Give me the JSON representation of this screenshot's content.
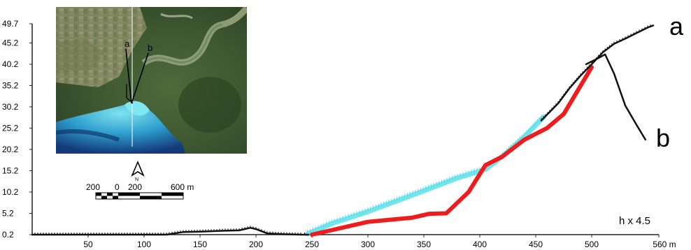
{
  "chart_data": {
    "type": "line",
    "x_unit": "m",
    "xlim": [
      0,
      560
    ],
    "ylim": [
      0.2,
      49.7
    ],
    "x_ticks": [
      50,
      100,
      150,
      200,
      250,
      300,
      350,
      400,
      450,
      500,
      560
    ],
    "x_tick_labels": [
      "50",
      "100",
      "150",
      "200",
      "250",
      "300",
      "350",
      "400",
      "450",
      "500",
      "560 m"
    ],
    "y_ticks": [
      0.2,
      5.2,
      10.2,
      15.2,
      20.2,
      25.2,
      30.2,
      35.2,
      40.2,
      45.2,
      49.7
    ],
    "y_tick_labels": [
      "0.2",
      "5.2",
      "10.2",
      "15.2",
      "20.2",
      "25.2",
      "30.2",
      "35.2",
      "40.2",
      "45.2",
      "49.7"
    ],
    "annotation": "h x 4.5",
    "series": [
      {
        "name": "a",
        "color": "#111111",
        "style": "ticked-line",
        "x": [
          0,
          50,
          100,
          120,
          135,
          150,
          170,
          185,
          195,
          200,
          210,
          225,
          240,
          247
        ],
        "y": [
          0.2,
          0.2,
          0.2,
          0.2,
          0.8,
          0.9,
          1.1,
          1.2,
          1.8,
          1.5,
          0.5,
          0.3,
          0.2,
          0.2
        ]
      },
      {
        "name": "a",
        "color": "#111111",
        "style": "ticked-line",
        "x": [
          455,
          470,
          480,
          490,
          500,
          510,
          520,
          530,
          540,
          550,
          555
        ],
        "y": [
          27,
          31,
          34.5,
          37.5,
          40.2,
          43,
          45,
          46.2,
          47.5,
          48.8,
          49.3
        ]
      },
      {
        "name": "b",
        "color": "#111111",
        "style": "line",
        "x": [
          495,
          505,
          512,
          520,
          530,
          540,
          548
        ],
        "y": [
          40.2,
          41.5,
          42.5,
          38,
          30.5,
          26,
          22.5
        ]
      },
      {
        "name": "",
        "color": "#ee1c1c",
        "style": "thick-line",
        "x": [
          250,
          300,
          340,
          355,
          370,
          390,
          405,
          420,
          440,
          460,
          475,
          500
        ],
        "y": [
          0.2,
          3.2,
          4.2,
          5.1,
          5.2,
          10.2,
          16.5,
          18.5,
          22.5,
          25.2,
          28.5,
          39.5
        ]
      },
      {
        "name": "",
        "color": "#6fe6ee",
        "style": "thick-ticked-line",
        "x": [
          246,
          270,
          300,
          340,
          380,
          405,
          420,
          440,
          457
        ],
        "y": [
          0.4,
          3,
          5.6,
          9.5,
          13.5,
          15.5,
          18.5,
          23.2,
          27.8
        ]
      }
    ]
  },
  "inset_map": {
    "line_labels": [
      "a",
      "b"
    ],
    "north_label": "N",
    "scale_labels": [
      "200",
      "0",
      "200",
      "600 m"
    ]
  },
  "colors": {
    "profile_a_b": "#111111",
    "red_profile": "#ee1c1c",
    "cyan_profile": "#6fe6ee",
    "axis": "#222222"
  }
}
